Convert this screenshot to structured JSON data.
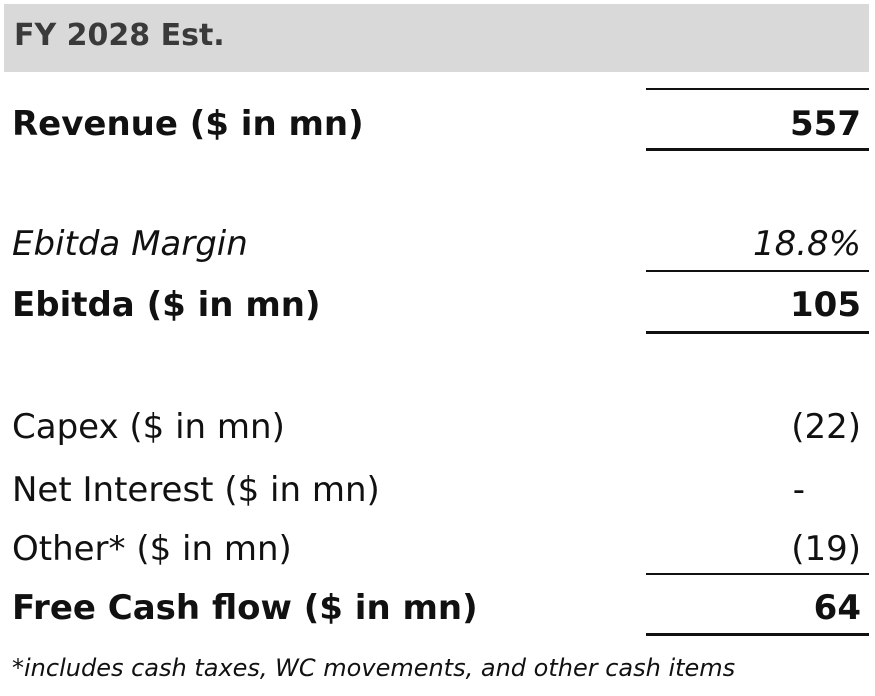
{
  "header": {
    "title": "FY 2028 Est."
  },
  "rows": [
    {
      "label": "Revenue ($ in mn)",
      "value": "557"
    },
    {
      "label": "Ebitda Margin",
      "value": "18.8%"
    },
    {
      "label": "Ebitda ($ in mn)",
      "value": "105"
    },
    {
      "label": "Capex ($ in mn)",
      "value": "(22)"
    },
    {
      "label": "Net Interest ($ in mn)",
      "value": "-"
    },
    {
      "label": "Other* ($ in mn)",
      "value": "(19)"
    },
    {
      "label": "Free Cash flow ($ in mn)",
      "value": "64"
    }
  ],
  "footnote": "*includes cash taxes, WC movements, and other cash items"
}
